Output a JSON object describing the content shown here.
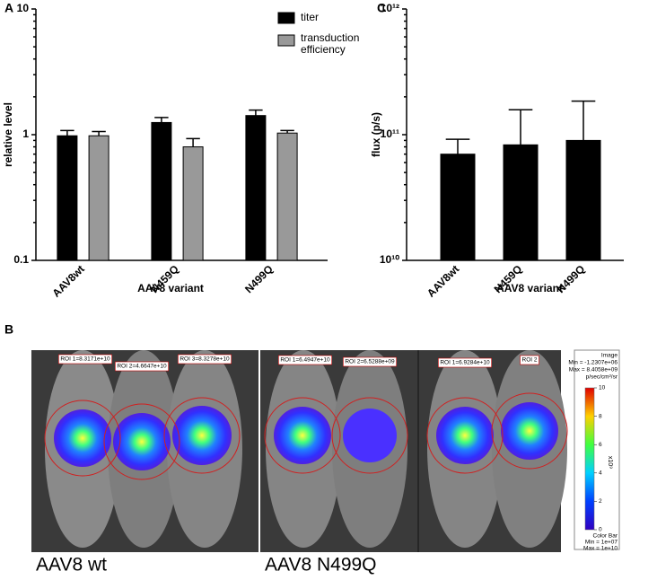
{
  "chart_data": [
    {
      "type": "bar",
      "panel_label": "A",
      "y_label": "relative level",
      "x_label": "AAV8 variant",
      "yscale": "log",
      "ylim": [
        0.1,
        10
      ],
      "yticks": [
        0.1,
        1,
        10
      ],
      "legend": "upper right",
      "categories": [
        "AAV8wt",
        "N459Q",
        "N499Q"
      ],
      "series": [
        {
          "name": "titer",
          "color": "#000000",
          "values": [
            0.98,
            1.25,
            1.42
          ],
          "errors": [
            0.1,
            0.12,
            0.15
          ]
        },
        {
          "name": "transduction efficiency",
          "color": "#999999",
          "values": [
            0.98,
            0.8,
            1.03
          ],
          "errors": [
            0.08,
            0.13,
            0.05
          ]
        }
      ]
    },
    {
      "type": "bar",
      "panel_label": "C",
      "y_label": "flux (p/s)",
      "x_label": "AAV8 variant",
      "yscale": "log",
      "ylim": [
        10000000000,
        1000000000000
      ],
      "yticks": [
        {
          "value": 10000000000,
          "label": "10¹⁰"
        },
        {
          "value": 100000000000,
          "label": "10¹¹"
        },
        {
          "value": 1000000000000,
          "label": "10¹²"
        }
      ],
      "categories": [
        "AAV8wt",
        "N459Q",
        "N499Q"
      ],
      "color": "#000000",
      "values": [
        70000000000,
        83000000000,
        90000000000
      ],
      "errors": [
        22000000000,
        75000000000,
        95000000000
      ]
    }
  ],
  "panel_b": {
    "label": "B",
    "images": [
      {
        "caption": "AAV8 wt",
        "rois": [
          "ROI 1=8.3171e+10",
          "ROI 2=4.6647e+10",
          "ROI 3=8.3278e+10"
        ]
      },
      {
        "caption": "AAV8 N499Q",
        "rois": [
          "ROI 1=6.4947e+10",
          "ROI 2=6.5288e+09",
          "ROI 1=6.9284e+10",
          "ROI 2"
        ]
      }
    ],
    "color_bar": {
      "header": [
        "Image",
        "Min = -1.2307e+06",
        "Max = 8.4058e+09",
        "p/sec/cm²/sr"
      ],
      "ticks": [
        10,
        8,
        6,
        4,
        2,
        0
      ],
      "unit": "x10⁹",
      "footer": [
        "Color Bar",
        "Min = 1e+07",
        "Max = 1e+10"
      ]
    }
  }
}
